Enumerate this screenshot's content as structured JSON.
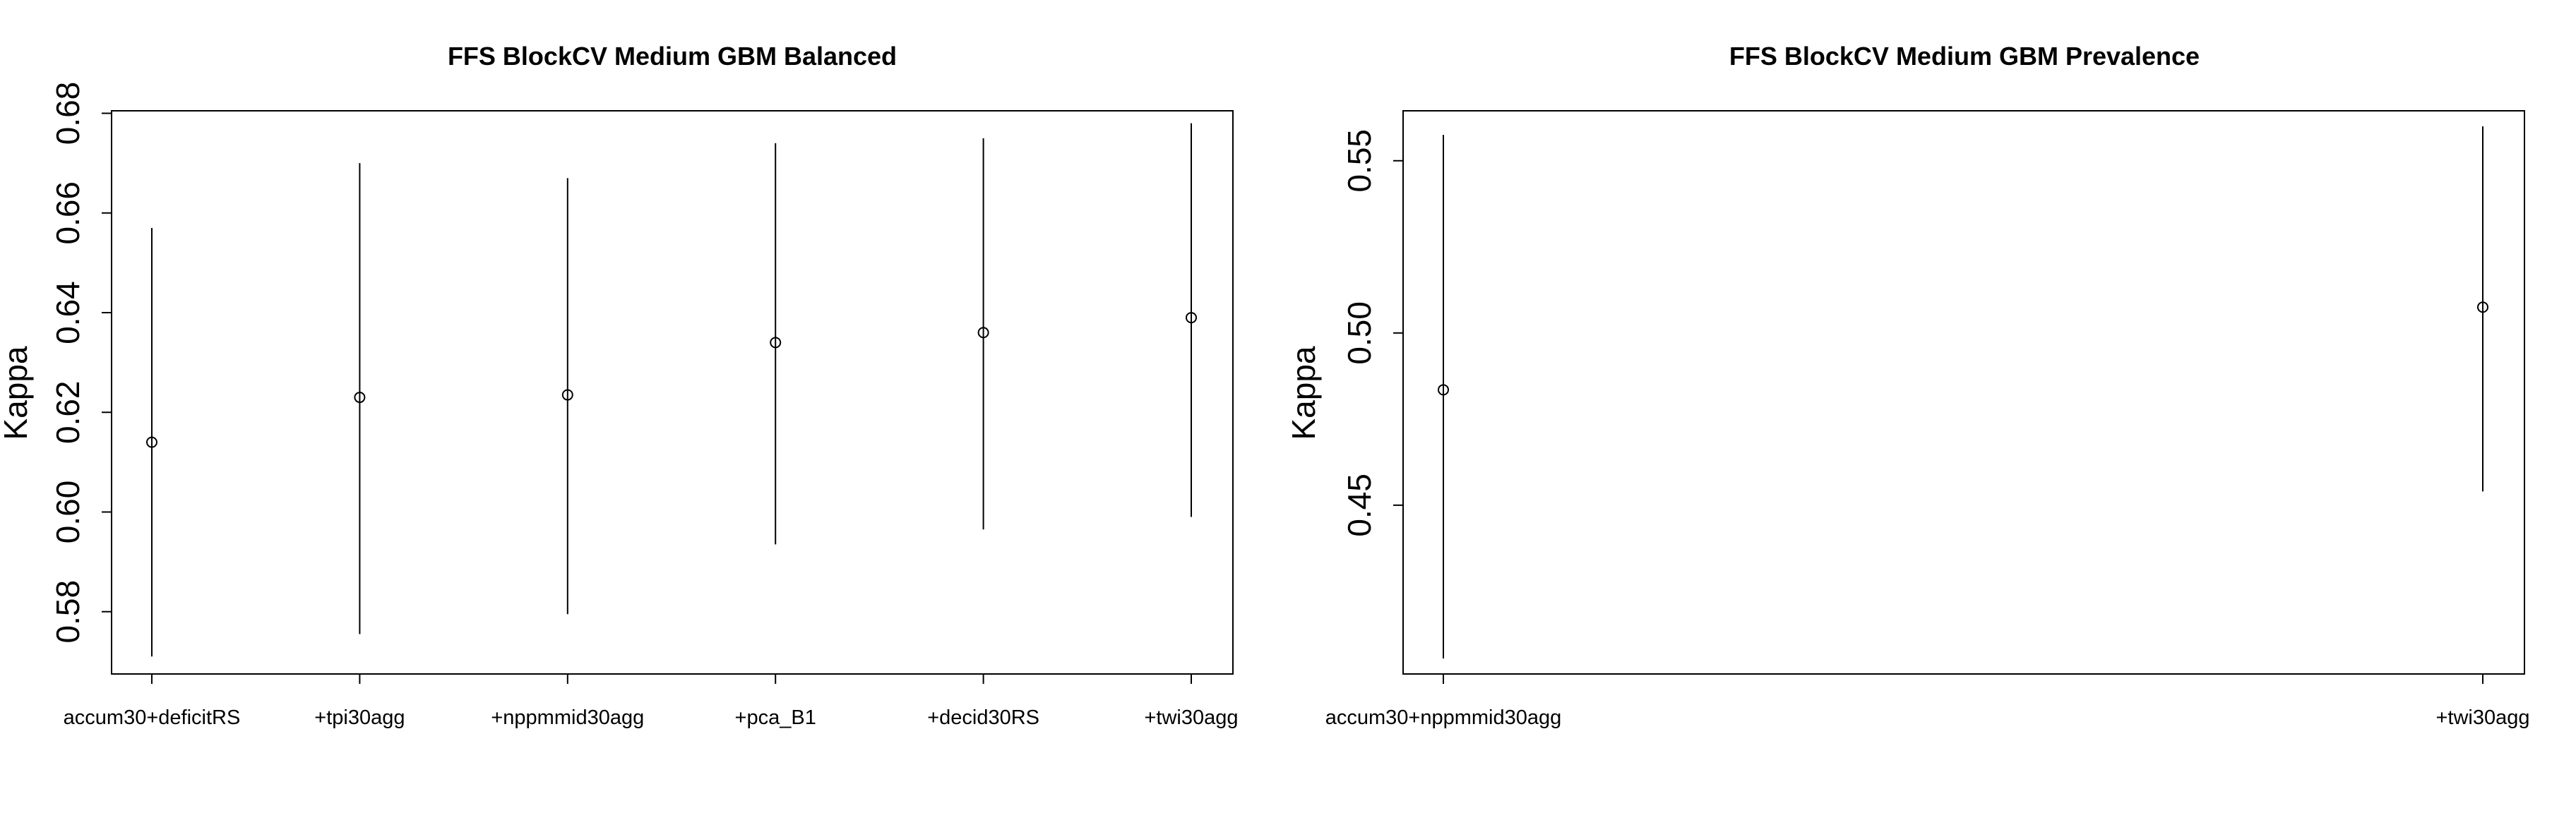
{
  "chart_data": [
    {
      "type": "scatter",
      "title": "FFS BlockCV Medium GBM Balanced",
      "xlabel": "",
      "ylabel": "Kappa",
      "error_bars": true,
      "categories": [
        "accum30+deficitRS",
        "+tpi30agg",
        "+nppmmid30agg",
        "+pca_B1",
        "+decid30RS",
        "+twi30agg"
      ],
      "values": [
        0.614,
        0.623,
        0.6235,
        0.634,
        0.636,
        0.639
      ],
      "lower": [
        0.571,
        0.5755,
        0.5795,
        0.5935,
        0.5965,
        0.599
      ],
      "upper": [
        0.657,
        0.67,
        0.667,
        0.674,
        0.675,
        0.678
      ],
      "yticks": [
        0.58,
        0.6,
        0.62,
        0.64,
        0.66,
        0.68
      ],
      "ylim": [
        0.5675,
        0.6805
      ]
    },
    {
      "type": "scatter",
      "title": "FFS BlockCV Medium GBM Prevalence",
      "xlabel": "",
      "ylabel": "Kappa",
      "error_bars": true,
      "categories": [
        "accum30+nppmmid30agg",
        "+twi30agg"
      ],
      "values": [
        0.4835,
        0.5075
      ],
      "lower": [
        0.4055,
        0.454
      ],
      "upper": [
        0.5575,
        0.56
      ],
      "yticks": [
        0.45,
        0.5,
        0.55
      ],
      "ylim": [
        0.401,
        0.5645
      ]
    }
  ]
}
